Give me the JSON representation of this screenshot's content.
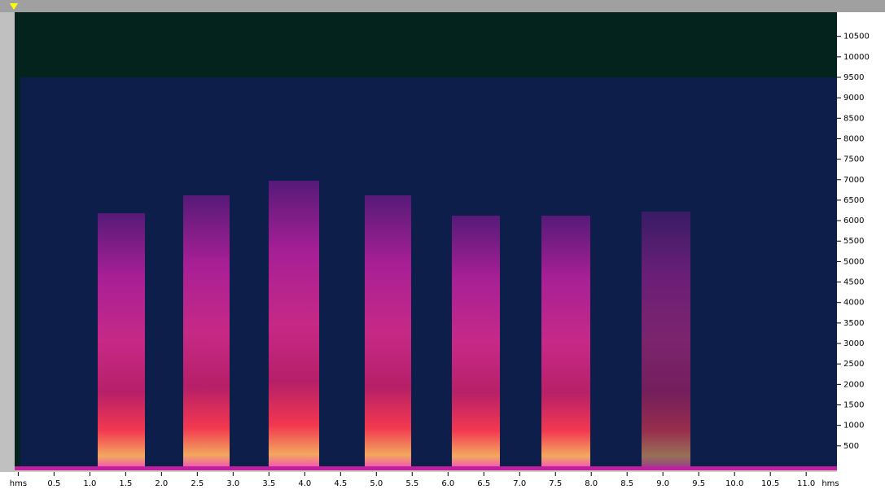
{
  "chart_data": {
    "type": "spectrogram",
    "x_unit_label": "hms",
    "xlim": [
      -0.05,
      11.43
    ],
    "xticks": [
      {
        "value": 0,
        "label": "hms"
      },
      0.5,
      {
        "value": 1,
        "label": "1.0"
      },
      1.5,
      {
        "value": 2,
        "label": "2.0"
      },
      2.5,
      {
        "value": 3,
        "label": "3.0"
      },
      3.5,
      {
        "value": 4,
        "label": "4.0"
      },
      4.5,
      {
        "value": 5,
        "label": "5.0"
      },
      5.5,
      {
        "value": 6,
        "label": "6.0"
      },
      6.5,
      {
        "value": 7,
        "label": "7.0"
      },
      7.5,
      {
        "value": 8,
        "label": "8.0"
      },
      8.5,
      {
        "value": 9,
        "label": "9.0"
      },
      9.5,
      {
        "value": 10,
        "label": "10.0"
      },
      10.5,
      {
        "value": 11,
        "label": "11.0"
      }
    ],
    "ylim": [
      -100,
      11090
    ],
    "yticks": [
      500,
      1000,
      1500,
      2000,
      2500,
      3000,
      3500,
      4000,
      4500,
      5000,
      5500,
      6000,
      6500,
      7000,
      7500,
      8000,
      8500,
      9000,
      9500,
      10000,
      10500
    ]
  }
}
